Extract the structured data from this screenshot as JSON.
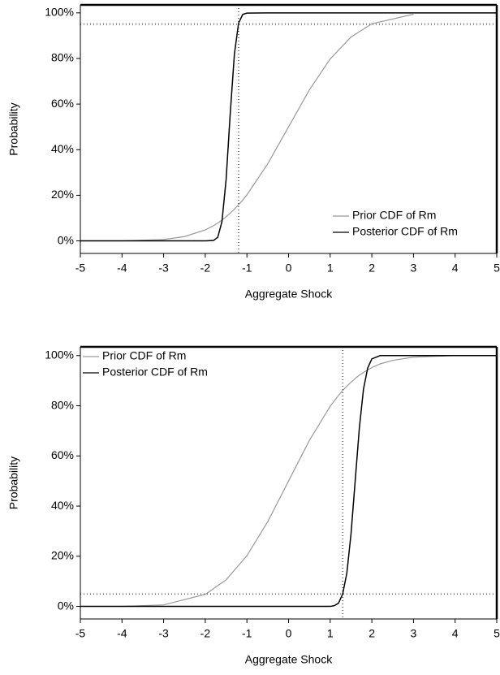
{
  "chart_data": [
    {
      "type": "line",
      "x_label": "Aggregate Shock",
      "y_label": "Probability",
      "x": [
        -5,
        -4,
        -3,
        -2.5,
        -2,
        -1.8,
        -1.7,
        -1.6,
        -1.5,
        -1.4,
        -1.3,
        -1.2,
        -1.1,
        -1,
        -0.5,
        0,
        0.5,
        1,
        1.5,
        2,
        3,
        4,
        5
      ],
      "series": [
        {
          "name": "Prior CDF of Rm",
          "color": "#999999",
          "values": [
            0,
            0,
            0.6,
            1.9,
            4.8,
            6.7,
            7.8,
            9.1,
            10.6,
            12.2,
            13.9,
            15.9,
            17.9,
            20.2,
            33.8,
            50,
            66.2,
            79.8,
            89.4,
            95.2,
            99.4,
            null,
            null
          ]
        },
        {
          "name": "Posterior CDF of Rm",
          "color": "#000000",
          "values": [
            0,
            0,
            0,
            0,
            0,
            0.2,
            1.6,
            8.4,
            26.8,
            56,
            82,
            95.5,
            99.3,
            99.9,
            100,
            100,
            100,
            100,
            100,
            100,
            100,
            100,
            100
          ]
        }
      ],
      "hline": 95,
      "vline": -1.2,
      "xlim": [
        -5,
        5
      ],
      "xticks": [
        -5,
        -4,
        -3,
        -2,
        -1,
        0,
        1,
        2,
        3,
        4,
        5
      ],
      "ylim": [
        -5.5,
        103.5
      ],
      "yticks": [
        {
          "value": 0,
          "label": "0%"
        },
        {
          "value": 20,
          "label": "20%"
        },
        {
          "value": 40,
          "label": "40%"
        },
        {
          "value": 60,
          "label": "60%"
        },
        {
          "value": 80,
          "label": "80%"
        },
        {
          "value": 100,
          "label": "100%"
        }
      ],
      "legend": "lower right"
    },
    {
      "type": "line",
      "x_label": "Aggregate Shock",
      "y_label": "Probability",
      "x": [
        -5,
        -4,
        -3,
        -2,
        -1.5,
        -1,
        -0.5,
        0,
        0.5,
        1,
        1.1,
        1.2,
        1.3,
        1.4,
        1.5,
        1.6,
        1.7,
        1.8,
        1.9,
        2,
        2.2,
        2.5,
        3,
        4,
        5
      ],
      "series": [
        {
          "name": "Prior CDF of Rm",
          "color": "#999999",
          "values": [
            null,
            0,
            0.6,
            4.8,
            10.6,
            20.2,
            33.8,
            50,
            66.2,
            79.8,
            82,
            84.1,
            86.1,
            87.8,
            89.4,
            90.9,
            92.2,
            93.3,
            94.3,
            95.2,
            96.7,
            98.1,
            99.4,
            100,
            100
          ]
        },
        {
          "name": "Posterior CDF of Rm",
          "color": "#000000",
          "values": [
            0,
            0,
            0,
            0,
            0,
            0,
            0,
            0,
            0,
            0,
            0.3,
            1.3,
            5,
            13.3,
            28.9,
            50,
            71.1,
            86.7,
            95,
            98.7,
            100,
            100,
            100,
            100,
            100
          ]
        }
      ],
      "hline": 5,
      "vline": 1.3,
      "xlim": [
        -5,
        5
      ],
      "xticks": [
        -5,
        -4,
        -3,
        -2,
        -1,
        0,
        1,
        2,
        3,
        4,
        5
      ],
      "ylim": [
        -5,
        103.5
      ],
      "yticks": [
        {
          "value": 0,
          "label": "0%"
        },
        {
          "value": 20,
          "label": "20%"
        },
        {
          "value": 40,
          "label": "40%"
        },
        {
          "value": 60,
          "label": "60%"
        },
        {
          "value": 80,
          "label": "80%"
        },
        {
          "value": 100,
          "label": "100%"
        }
      ],
      "legend": "upper left"
    }
  ]
}
